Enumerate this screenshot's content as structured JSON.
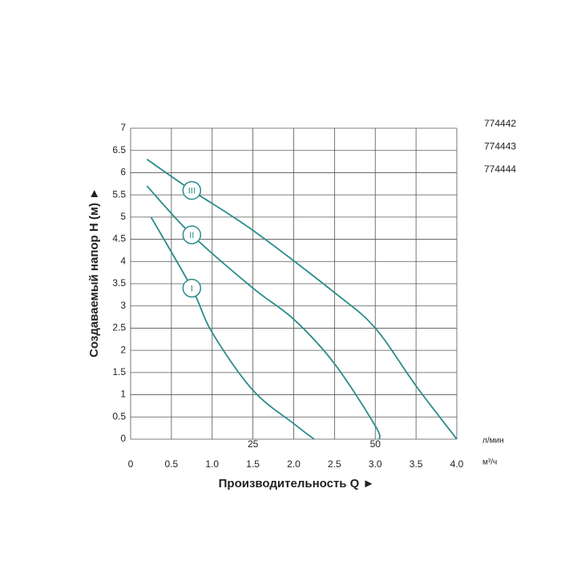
{
  "chart_data": {
    "type": "line",
    "y_label": "Создаваемый напор H (м) ►",
    "x_label": "Производительность Q ►",
    "x_unit": "м³/ч",
    "x2_unit": "л/мин",
    "models": [
      "774442",
      "774443",
      "774444"
    ],
    "xlim": [
      0,
      4
    ],
    "ylim": [
      0,
      7
    ],
    "xticks": [
      0,
      0.5,
      {
        "value": 1,
        "label": "1.0"
      },
      1.5,
      {
        "value": 2,
        "label": "2.0"
      },
      2.5,
      {
        "value": 3,
        "label": "3.0"
      },
      3.5,
      {
        "value": 4,
        "label": "4.0"
      }
    ],
    "x2ticks": [
      {
        "value": 1.5,
        "label": "25"
      },
      {
        "value": 3,
        "label": "50"
      }
    ],
    "yticks": [
      0,
      0.5,
      1,
      1.5,
      2,
      2.5,
      3,
      3.5,
      4,
      4.5,
      5,
      5.5,
      6,
      6.5,
      7
    ],
    "grid": true,
    "series": [
      {
        "name": "I",
        "color": "#2a8c8a",
        "x": [
          0.25,
          0.75,
          1.0,
          1.5,
          2.0,
          2.25
        ],
        "values": [
          5.0,
          3.4,
          2.4,
          1.1,
          0.35,
          0
        ]
      },
      {
        "name": "II",
        "color": "#2a8c8a",
        "x": [
          0.2,
          0.75,
          1.5,
          2.0,
          2.5,
          3.0,
          3.05
        ],
        "values": [
          5.7,
          4.6,
          3.4,
          2.7,
          1.7,
          0.3,
          0
        ]
      },
      {
        "name": "III",
        "color": "#2a8c8a",
        "x": [
          0.2,
          0.75,
          1.5,
          2.5,
          3.0,
          3.5,
          4.0
        ],
        "values": [
          6.3,
          5.6,
          4.7,
          3.3,
          2.5,
          1.2,
          0
        ]
      }
    ]
  }
}
